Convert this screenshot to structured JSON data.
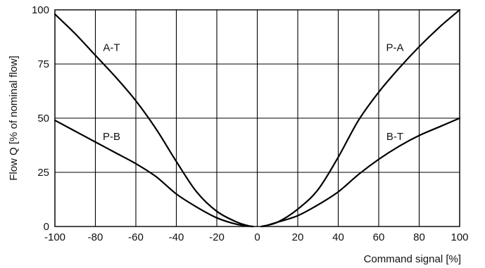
{
  "chart_data": {
    "type": "line",
    "xlabel": "Command signal [%]",
    "ylabel": "Flow Q [% of nominal flow]",
    "xlim": [
      -100,
      100
    ],
    "ylim": [
      0,
      100
    ],
    "x_ticks": [
      -100,
      -80,
      -60,
      -40,
      -20,
      0,
      20,
      40,
      60,
      80,
      100
    ],
    "y_ticks": [
      0,
      25,
      50,
      75,
      100
    ],
    "grid": true,
    "series": [
      {
        "name": "A-T",
        "points": [
          [
            -100,
            98
          ],
          [
            -90,
            89
          ],
          [
            -80,
            79
          ],
          [
            -70,
            69
          ],
          [
            -60,
            58
          ],
          [
            -50,
            45
          ],
          [
            -40,
            30
          ],
          [
            -30,
            16
          ],
          [
            -20,
            7
          ],
          [
            -10,
            2
          ],
          [
            -3,
            0
          ]
        ]
      },
      {
        "name": "P-B",
        "points": [
          [
            -100,
            49
          ],
          [
            -90,
            44
          ],
          [
            -80,
            39
          ],
          [
            -70,
            34
          ],
          [
            -60,
            29
          ],
          [
            -50,
            23
          ],
          [
            -40,
            15
          ],
          [
            -30,
            9
          ],
          [
            -20,
            4
          ],
          [
            -10,
            1
          ],
          [
            -2,
            0
          ]
        ]
      },
      {
        "name": "P-A",
        "points": [
          [
            2,
            0
          ],
          [
            10,
            2
          ],
          [
            20,
            8
          ],
          [
            30,
            17
          ],
          [
            40,
            32
          ],
          [
            50,
            49
          ],
          [
            60,
            62
          ],
          [
            70,
            73
          ],
          [
            80,
            83
          ],
          [
            90,
            92
          ],
          [
            100,
            100
          ]
        ]
      },
      {
        "name": "B-T",
        "points": [
          [
            3,
            0
          ],
          [
            10,
            2
          ],
          [
            20,
            5
          ],
          [
            30,
            10
          ],
          [
            40,
            16
          ],
          [
            50,
            24
          ],
          [
            60,
            31
          ],
          [
            70,
            37
          ],
          [
            80,
            42
          ],
          [
            90,
            46
          ],
          [
            100,
            50
          ]
        ]
      }
    ],
    "annotations": [
      {
        "text": "A-T",
        "x": -72,
        "y": 81
      },
      {
        "text": "P-B",
        "x": -72,
        "y": 40
      },
      {
        "text": "P-A",
        "x": 68,
        "y": 81
      },
      {
        "text": "B-T",
        "x": 68,
        "y": 40
      }
    ]
  }
}
